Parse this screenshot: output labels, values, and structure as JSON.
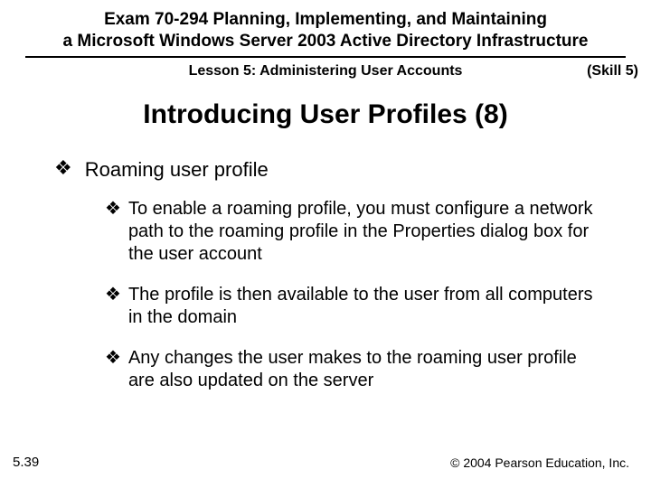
{
  "header": {
    "line1": "Exam 70-294 Planning, Implementing, and Maintaining",
    "line2": "a Microsoft Windows Server 2003 Active Directory Infrastructure"
  },
  "lesson": {
    "title": "Lesson 5: Administering User Accounts",
    "skill": "(Skill 5)"
  },
  "slide_title": "Introducing User Profiles (8)",
  "bullets": {
    "level1": "Roaming user profile",
    "level2": [
      "To enable a roaming profile, you must configure a network path to the roaming profile in the Properties dialog box for the user account",
      "The profile is then available to the user from all computers in the domain",
      "Any changes the user makes to the roaming user profile are also updated on the server"
    ]
  },
  "footer": {
    "page": "5.39",
    "copyright": "© 2004 Pearson Education, Inc."
  },
  "style": {
    "bullet_glyph": "❖",
    "colors": {
      "text": "#000000",
      "background": "#ffffff",
      "rule": "#000000"
    },
    "fonts": {
      "header_size_pt": 14,
      "lesson_size_pt": 12,
      "title_size_pt": 22,
      "l1_size_pt": 16,
      "l2_size_pt": 15,
      "footer_size_pt": 11
    }
  }
}
